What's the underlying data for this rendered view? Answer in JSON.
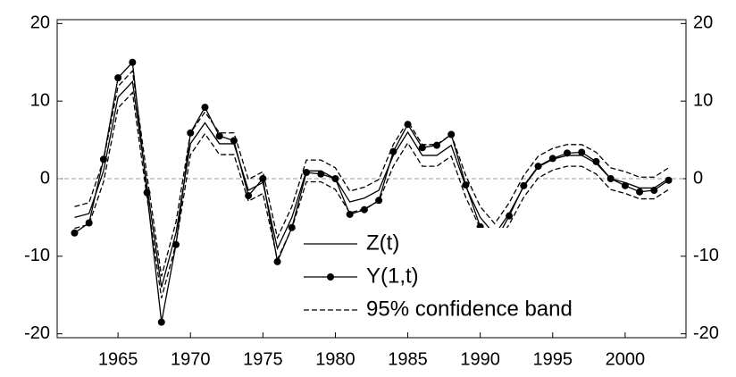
{
  "chart_data": {
    "type": "line",
    "x": [
      1962,
      1963,
      1964,
      1965,
      1966,
      1967,
      1968,
      1969,
      1970,
      1971,
      1972,
      1973,
      1974,
      1975,
      1976,
      1977,
      1978,
      1979,
      1980,
      1981,
      1982,
      1983,
      1984,
      1985,
      1986,
      1987,
      1988,
      1989,
      1990,
      1991,
      1992,
      1993,
      1994,
      1995,
      1996,
      1997,
      1998,
      1999,
      2000,
      2001,
      2002,
      2003
    ],
    "series": [
      {
        "name": "Z(t)",
        "color": "#000000",
        "values": [
          -5,
          -4.5,
          1,
          10.5,
          12.5,
          -1,
          -14,
          -7,
          4.5,
          7.2,
          4.5,
          4.5,
          -1.5,
          -0.5,
          -9,
          -5,
          1,
          1,
          0,
          -3,
          -2.5,
          -1.5,
          3,
          6,
          3,
          3,
          4.3,
          -1,
          -5,
          -7.2,
          -4.5,
          -1,
          1.5,
          2.5,
          3,
          3,
          2,
          0,
          -0.5,
          -1.2,
          -1.2,
          0
        ]
      },
      {
        "name": "Y(1,t)",
        "color": "#000000",
        "marker": "circle",
        "values": [
          -7,
          -5.7,
          2.5,
          13,
          15,
          -1.8,
          -18.5,
          -8.5,
          5.9,
          9.2,
          5.5,
          4.9,
          -2.2,
          0,
          -10.7,
          -6.3,
          0.8,
          0.6,
          0,
          -4.6,
          -4,
          -2.8,
          3.5,
          7,
          4,
          4.3,
          5.7,
          -0.8,
          -6.2,
          -8.2,
          -4.8,
          -0.9,
          1.6,
          2.6,
          3.3,
          3.4,
          2.2,
          0,
          -0.9,
          -1.7,
          -1.5,
          -0.2
        ]
      },
      {
        "name": "95% confidence band",
        "color": "#000000",
        "dashed": true,
        "upper": [
          -3.6,
          -3.1,
          2.4,
          11.9,
          13.9,
          0.4,
          -12.6,
          -5.6,
          5.9,
          8.6,
          5.9,
          5.9,
          -0.1,
          0.9,
          -7.6,
          -3.6,
          2.4,
          2.4,
          1.4,
          -1.6,
          -1.1,
          -0.1,
          4.4,
          7.4,
          4.4,
          4.4,
          5.7,
          0.4,
          -3.6,
          -5.8,
          -3.1,
          0.4,
          2.9,
          3.9,
          4.4,
          4.4,
          3.4,
          1.4,
          0.9,
          0.2,
          0.2,
          1.4
        ],
        "lower": [
          -6.4,
          -5.9,
          -0.4,
          9.1,
          11.1,
          -2.4,
          -15.4,
          -8.4,
          3.1,
          5.8,
          3.1,
          3.1,
          -2.9,
          -1.9,
          -10.4,
          -6.4,
          -0.4,
          -0.4,
          -1.4,
          -4.4,
          -3.9,
          -2.9,
          1.6,
          4.6,
          1.6,
          1.6,
          2.9,
          -2.4,
          -6.4,
          -8.6,
          -5.9,
          -2.4,
          0.1,
          1.1,
          1.6,
          1.6,
          0.6,
          -1.4,
          -1.9,
          -2.6,
          -2.6,
          -1.4
        ]
      }
    ],
    "xlim": [
      1960.8,
      2004.2
    ],
    "xticks": [
      1965,
      1970,
      1975,
      1980,
      1985,
      1990,
      1995,
      2000
    ],
    "ylim": [
      -20.5,
      20.5
    ],
    "yticks": [
      -20,
      -10,
      0,
      10,
      20
    ],
    "zero_line": true,
    "legend": "lower-center"
  }
}
